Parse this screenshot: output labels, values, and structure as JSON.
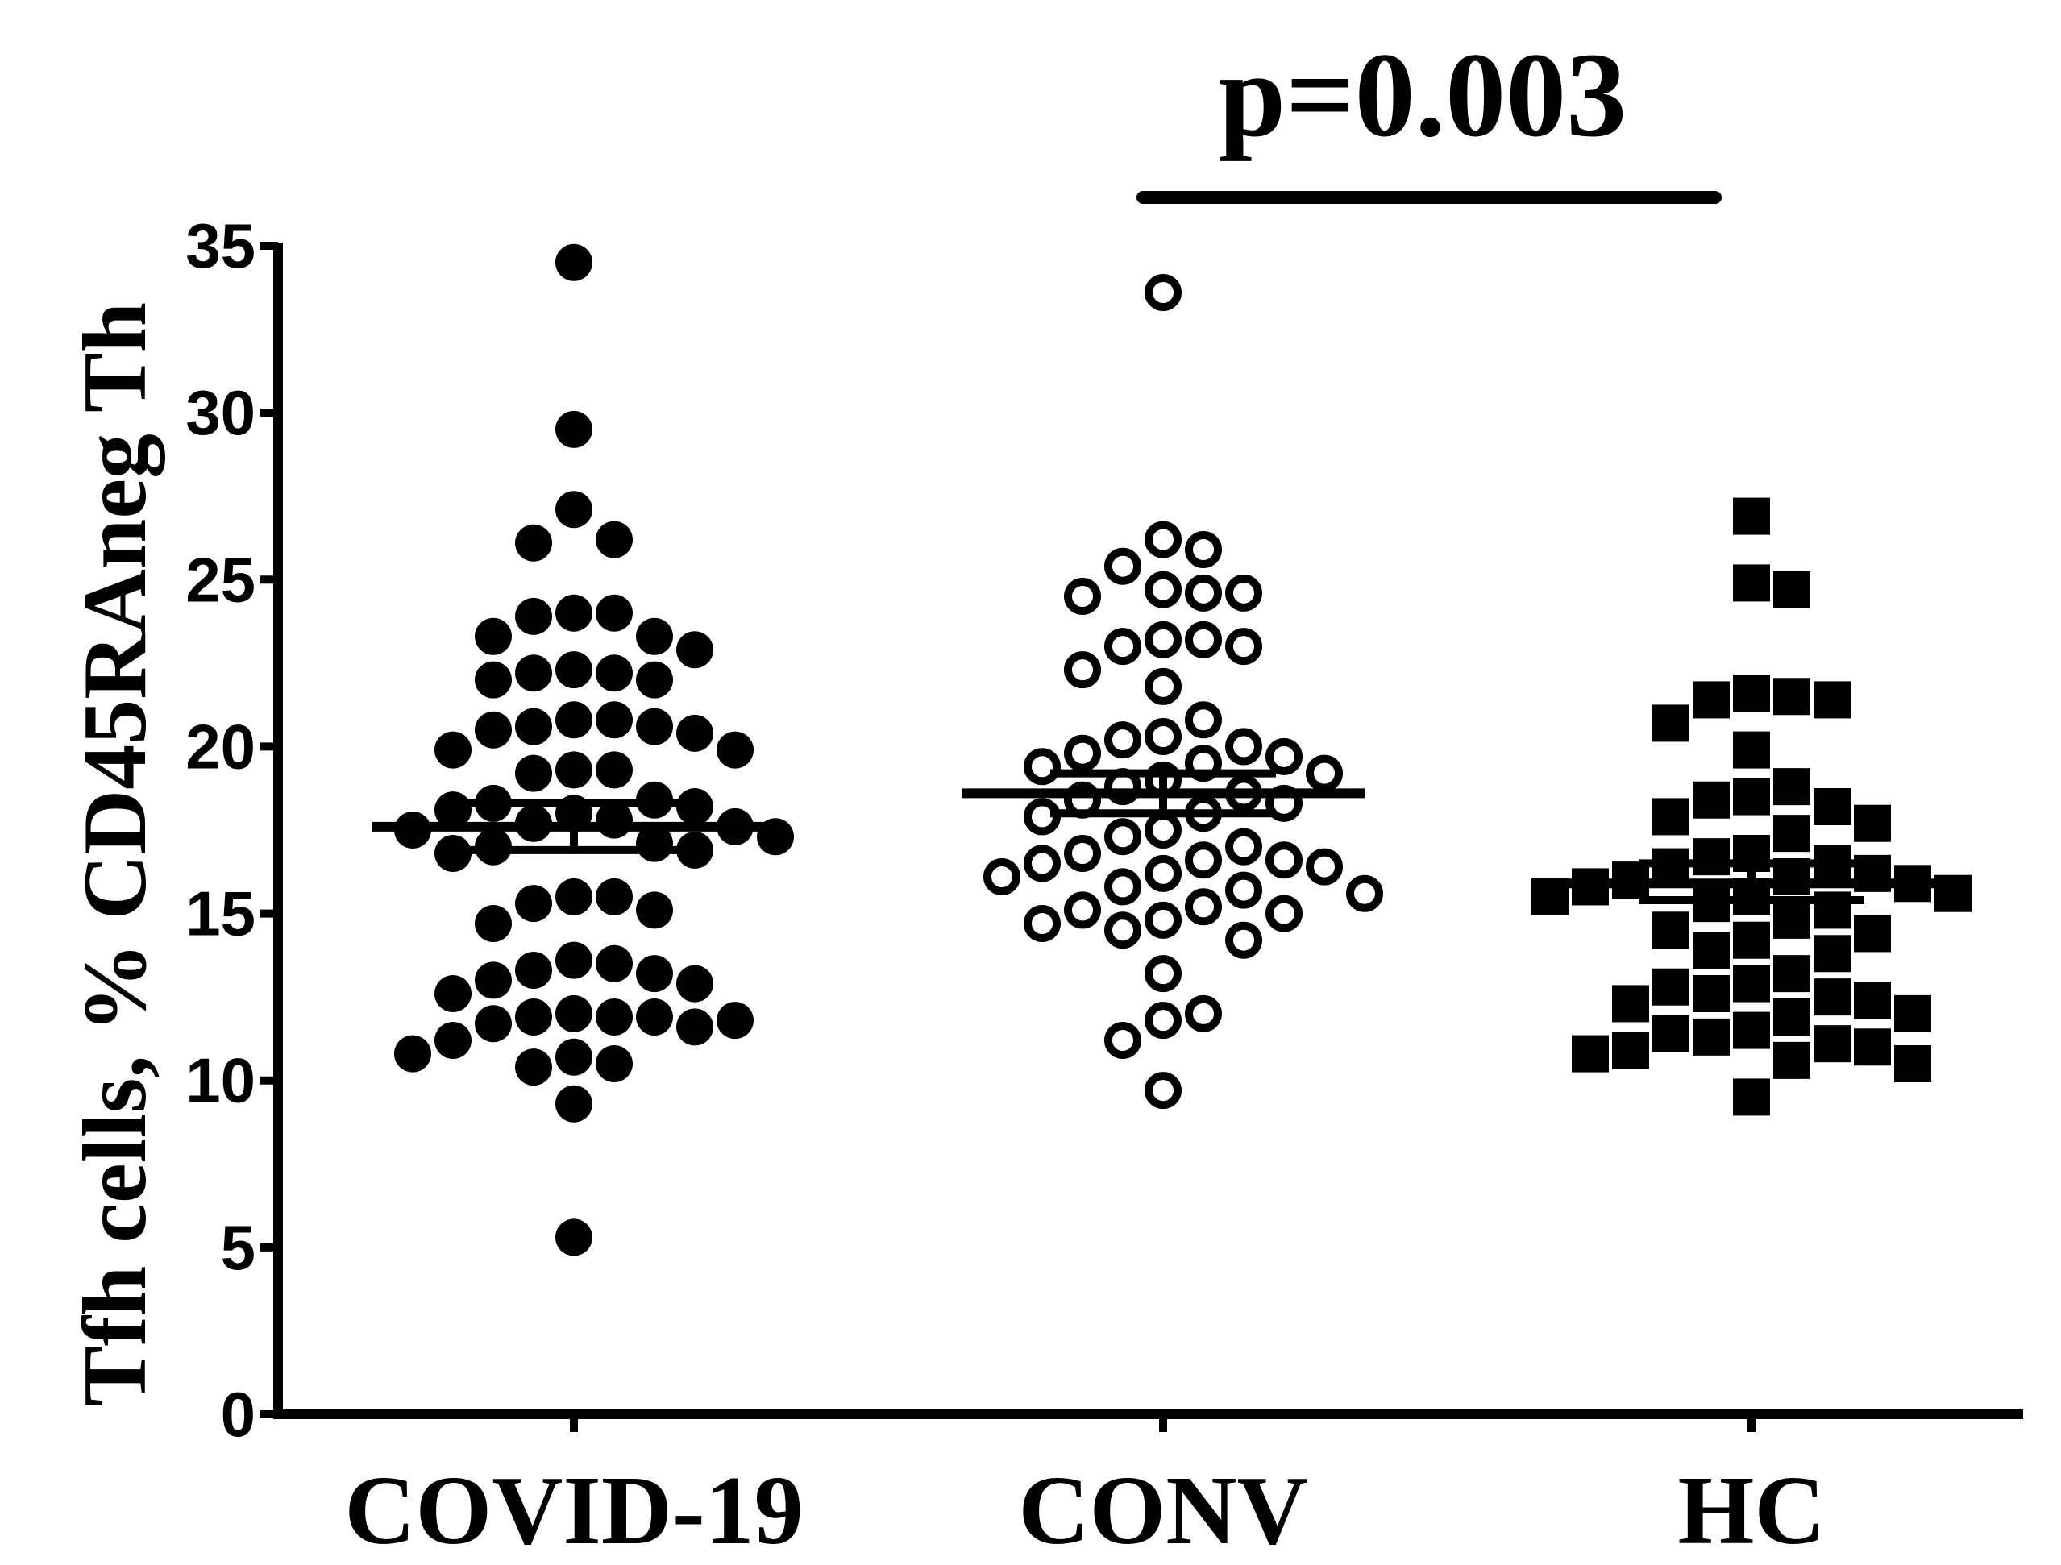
{
  "chart_data": {
    "type": "scatter",
    "subtype": "dot-plot with mean ± SEM",
    "ylabel": "Tfh cells, % CD45RAneg Th",
    "xlabel": "",
    "ylim": [
      0,
      35
    ],
    "yticks": [
      0,
      5,
      10,
      15,
      20,
      25,
      30,
      35
    ],
    "ytick_labels": [
      "0",
      "5",
      "10",
      "15",
      "20",
      "25",
      "30",
      "35"
    ],
    "grid": false,
    "legend": "none",
    "categories": [
      "COVID-19",
      "CONV",
      "HC"
    ],
    "series": [
      {
        "category": "COVID-19",
        "marker": "filled-circle",
        "mean": 17.6,
        "sem": [
          16.9,
          18.3
        ],
        "values": [
          34.5,
          29.5,
          27.1,
          26.2,
          26.1,
          24.0,
          24.0,
          23.9,
          23.3,
          23.3,
          22.9,
          22.3,
          22.2,
          22.2,
          22.0,
          22.0,
          20.8,
          20.8,
          20.6,
          20.6,
          20.5,
          20.4,
          19.9,
          19.9,
          19.3,
          19.3,
          19.2,
          18.4,
          18.3,
          18.2,
          18.1,
          18.0,
          17.8,
          17.7,
          17.6,
          17.5,
          17.3,
          17.1,
          17.0,
          16.9,
          16.8,
          15.5,
          15.5,
          15.3,
          15.1,
          14.7,
          13.6,
          13.5,
          13.3,
          13.2,
          13.0,
          12.9,
          12.6,
          12.0,
          11.9,
          11.9,
          11.9,
          11.8,
          11.7,
          11.6,
          11.2,
          10.8,
          10.7,
          10.5,
          10.4,
          9.3,
          5.3
        ]
      },
      {
        "category": "CONV",
        "marker": "open-circle",
        "mean": 18.6,
        "sem": [
          18.0,
          19.2
        ],
        "values": [
          33.6,
          26.2,
          25.9,
          25.4,
          24.7,
          24.6,
          24.6,
          24.5,
          23.2,
          23.2,
          23.0,
          23.0,
          22.3,
          21.8,
          20.8,
          20.3,
          20.2,
          20.0,
          19.8,
          19.7,
          19.5,
          19.4,
          19.2,
          19.0,
          18.8,
          18.6,
          18.4,
          18.3,
          18.0,
          17.9,
          17.5,
          17.3,
          17.0,
          16.8,
          16.6,
          16.6,
          16.5,
          16.4,
          16.2,
          16.1,
          15.8,
          15.7,
          15.6,
          15.2,
          15.1,
          15.0,
          14.8,
          14.7,
          14.5,
          14.2,
          13.2,
          12.0,
          11.8,
          11.2,
          9.7
        ]
      },
      {
        "category": "HC",
        "marker": "filled-square",
        "mean": 15.9,
        "sem": [
          15.4,
          16.5
        ],
        "values": [
          26.9,
          24.9,
          24.7,
          21.6,
          21.5,
          21.4,
          21.4,
          20.7,
          19.9,
          18.8,
          18.5,
          18.4,
          18.2,
          17.9,
          17.7,
          17.4,
          16.8,
          16.7,
          16.5,
          16.4,
          16.2,
          16.1,
          16.0,
          15.9,
          15.8,
          15.6,
          15.5,
          15.5,
          15.3,
          15.1,
          14.8,
          14.5,
          14.4,
          14.2,
          13.9,
          13.8,
          13.2,
          12.9,
          12.8,
          12.6,
          12.5,
          12.4,
          12.3,
          12.0,
          11.9,
          11.5,
          11.4,
          11.3,
          11.1,
          11.0,
          10.9,
          10.8,
          10.6,
          10.5,
          9.5
        ]
      }
    ],
    "annotations": [
      {
        "text": "p=0.003",
        "between": [
          "CONV",
          "HC"
        ]
      }
    ]
  }
}
